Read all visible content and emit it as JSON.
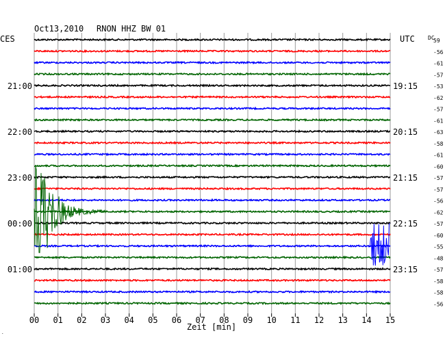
{
  "header": {
    "date": "Oct13,2010",
    "station": "RNON HHZ BW 01",
    "left_zone": "CES",
    "right_zone": "UTC",
    "dc_label": "DC"
  },
  "chart_data": {
    "type": "line",
    "title": "Oct13,2010   RNON HHZ BW 01",
    "xlabel": "Zeit [min]",
    "x_ticks": [
      "00",
      "01",
      "02",
      "03",
      "04",
      "05",
      "06",
      "07",
      "08",
      "09",
      "10",
      "11",
      "12",
      "13",
      "14",
      "15"
    ],
    "xlim": [
      0,
      15
    ],
    "grid": true,
    "trace_colors": [
      "#000000",
      "#ff0000",
      "#0000ff",
      "#006400"
    ],
    "left_time_labels": [
      {
        "trace": 4,
        "text": "21:00"
      },
      {
        "trace": 8,
        "text": "22:00"
      },
      {
        "trace": 12,
        "text": "23:00"
      },
      {
        "trace": 16,
        "text": "00:00"
      },
      {
        "trace": 20,
        "text": "01:00"
      }
    ],
    "right_time_labels": [
      {
        "trace": 4,
        "text": "19:15"
      },
      {
        "trace": 8,
        "text": "20:15"
      },
      {
        "trace": 12,
        "text": "21:15"
      },
      {
        "trace": 16,
        "text": "22:15"
      },
      {
        "trace": 20,
        "text": "23:15"
      }
    ],
    "dc_offsets": [
      "59",
      "-56",
      "-61",
      "-57",
      "-53",
      "-62",
      "-57",
      "-61",
      "-63",
      "-58",
      "-61",
      "-60",
      "-57",
      "-57",
      "-56",
      "-62",
      "-57",
      "-60",
      "-55",
      "-48",
      "-57",
      "-58",
      "-58",
      "-56"
    ],
    "events": [
      {
        "trace": 15,
        "start_min": 0.0,
        "end_min": 3.0,
        "description": "large seismic event"
      },
      {
        "trace": 18,
        "start_min": 14.0,
        "end_min": 15.0,
        "description": "event onset"
      }
    ]
  }
}
